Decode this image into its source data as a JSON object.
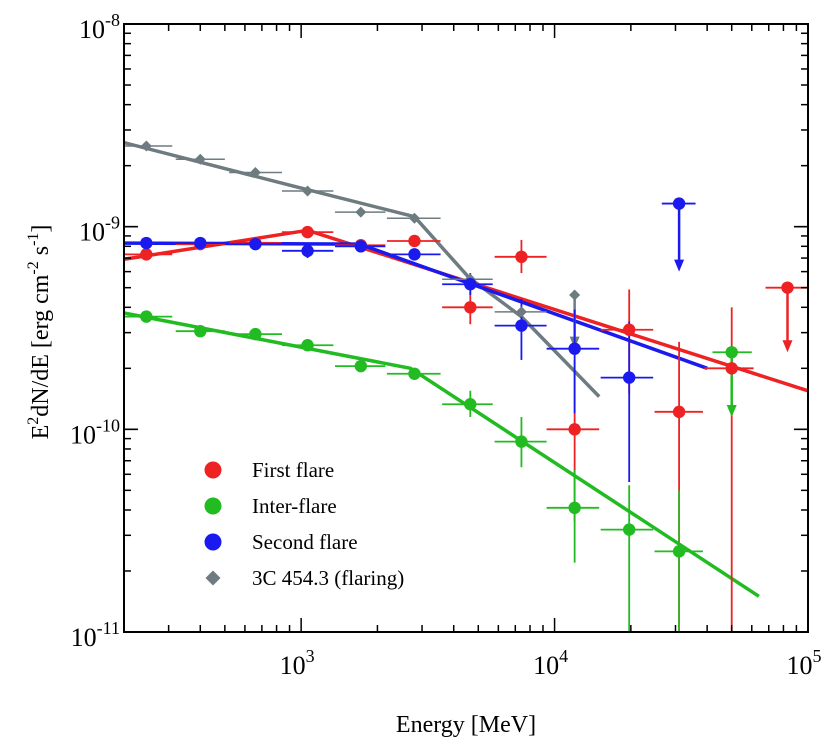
{
  "chart_data": {
    "type": "scatter",
    "xscale": "log",
    "yscale": "log",
    "xlim": [
      200,
      100000
    ],
    "ylim": [
      1e-11,
      1e-08
    ],
    "xlabel": "Energy [MeV]",
    "ylabel_parts": [
      "E",
      "2",
      "dN/dE [erg cm",
      "-2",
      " s",
      "-1",
      "]"
    ],
    "x_ticks": [
      {
        "value": 1000,
        "base": "10",
        "exp": "3"
      },
      {
        "value": 10000,
        "base": "10",
        "exp": "4"
      },
      {
        "value": 100000,
        "base": "10",
        "exp": "5"
      }
    ],
    "y_ticks": [
      {
        "value": 1e-11,
        "base": "10",
        "exp": "-11"
      },
      {
        "value": 1e-10,
        "base": "10",
        "exp": "-10"
      },
      {
        "value": 1e-09,
        "base": "10",
        "exp": "-9"
      },
      {
        "value": 1e-08,
        "base": "10",
        "exp": "-8"
      }
    ],
    "legend": [
      {
        "label": "First flare",
        "color": "#ee2222",
        "marker": "circle"
      },
      {
        "label": "Inter-flare",
        "color": "#22bb22",
        "marker": "circle"
      },
      {
        "label": "Second flare",
        "color": "#1a1aee",
        "marker": "circle"
      },
      {
        "label": "3C 454.3 (flaring)",
        "color": "#6e7b80",
        "marker": "diamond"
      }
    ],
    "series": [
      {
        "name": "3C 454.3 (flaring)",
        "color": "#6e7b80",
        "marker": "diamond",
        "points": [
          {
            "x": 245,
            "y": 2.5e-09,
            "xlo": 200,
            "xhi": 310
          },
          {
            "x": 400,
            "y": 2.15e-09,
            "xlo": 320,
            "xhi": 500
          },
          {
            "x": 660,
            "y": 1.85e-09,
            "xlo": 520,
            "xhi": 840
          },
          {
            "x": 1060,
            "y": 1.5e-09,
            "xlo": 840,
            "xhi": 1340
          },
          {
            "x": 1720,
            "y": 1.18e-09,
            "xlo": 1360,
            "xhi": 2150
          },
          {
            "x": 2800,
            "y": 1.1e-09,
            "xlo": 2180,
            "xhi": 3550
          },
          {
            "x": 4650,
            "y": 5.5e-10,
            "xlo": 3600,
            "xhi": 5700
          },
          {
            "x": 7400,
            "y": 3.8e-10,
            "xlo": 5800,
            "xhi": 9300
          },
          {
            "x": 12000,
            "y": 4.6e-10,
            "ylo": 2.5e-10,
            "ul": true
          }
        ],
        "model": [
          [
            200,
            2.6e-09
          ],
          [
            1000,
            1.55e-09
          ],
          [
            2800,
            1.12e-09
          ],
          [
            4600,
            5.6e-10
          ],
          [
            7400,
            3.6e-10
          ],
          [
            15000,
            1.45e-10
          ]
        ]
      },
      {
        "name": "First flare",
        "color": "#ee2222",
        "marker": "circle",
        "points": [
          {
            "x": 245,
            "y": 7.3e-10,
            "xlo": 200,
            "xhi": 310
          },
          {
            "x": 400,
            "y": 8.2e-10,
            "xlo": 320,
            "xhi": 500
          },
          {
            "x": 660,
            "y": 8.3e-10,
            "xlo": 520,
            "xhi": 840
          },
          {
            "x": 1060,
            "y": 9.4e-10,
            "xlo": 840,
            "xhi": 1340
          },
          {
            "x": 1720,
            "y": 8.1e-10,
            "xlo": 1360,
            "xhi": 2150
          },
          {
            "x": 2800,
            "y": 8.5e-10,
            "xlo": 2180,
            "xhi": 3550
          },
          {
            "x": 4650,
            "y": 4e-10,
            "xlo": 3600,
            "xhi": 5700,
            "ylo": 3.3e-10,
            "yhi": 4.8e-10
          },
          {
            "x": 7400,
            "y": 7.1e-10,
            "xlo": 5800,
            "xhi": 9300,
            "ylo": 5.9e-10,
            "yhi": 8.6e-10
          },
          {
            "x": 12000,
            "y": 1e-10,
            "xlo": 9300,
            "xhi": 15000,
            "ylo": 3.5e-11,
            "yhi": 2.2e-10
          },
          {
            "x": 19700,
            "y": 3.1e-10,
            "xlo": 15200,
            "xhi": 24500,
            "ylo": 1.5e-10,
            "yhi": 4.9e-10
          },
          {
            "x": 31000,
            "y": 1.22e-10,
            "xlo": 24800,
            "xhi": 38500,
            "ylo": 1e-11,
            "yhi": 2.7e-10
          },
          {
            "x": 50000,
            "y": 2e-10,
            "xlo": 39000,
            "xhi": 61000,
            "ylo": 1e-11,
            "yhi": 4e-10
          },
          {
            "x": 83000,
            "y": 5e-10,
            "xlo": 68000,
            "xhi": 100000,
            "ul": true,
            "ylo": 2.4e-10
          }
        ],
        "model": [
          [
            200,
            6.9e-10
          ],
          [
            1060,
            9.6e-10
          ],
          [
            100000,
            1.55e-10
          ]
        ]
      },
      {
        "name": "Second flare",
        "color": "#1a1aee",
        "marker": "circle",
        "points": [
          {
            "x": 245,
            "y": 8.3e-10,
            "xlo": 200,
            "xhi": 310
          },
          {
            "x": 400,
            "y": 8.3e-10,
            "xlo": 320,
            "xhi": 500
          },
          {
            "x": 660,
            "y": 8.2e-10,
            "xlo": 520,
            "xhi": 840
          },
          {
            "x": 1060,
            "y": 7.6e-10,
            "xlo": 840,
            "xhi": 1340,
            "ylo": 7e-10,
            "yhi": 8.3e-10
          },
          {
            "x": 1720,
            "y": 8e-10,
            "xlo": 1360,
            "xhi": 2150
          },
          {
            "x": 2800,
            "y": 7.3e-10,
            "xlo": 2180,
            "xhi": 3550
          },
          {
            "x": 4650,
            "y": 5.2e-10,
            "xlo": 3600,
            "xhi": 5700,
            "ylo": 4.6e-10,
            "yhi": 5.9e-10
          },
          {
            "x": 7400,
            "y": 3.25e-10,
            "xlo": 5800,
            "xhi": 9300,
            "ylo": 2.2e-10,
            "yhi": 4.4e-10
          },
          {
            "x": 12000,
            "y": 2.5e-10,
            "xlo": 9300,
            "xhi": 15000,
            "ylo": 1.2e-10,
            "yhi": 3.9e-10
          },
          {
            "x": 19700,
            "y": 1.8e-10,
            "xlo": 15200,
            "xhi": 24500,
            "ylo": 5.5e-11,
            "yhi": 3.4e-10
          },
          {
            "x": 31000,
            "y": 1.3e-09,
            "xlo": 26500,
            "xhi": 36000,
            "ul": true,
            "ylo": 6e-10
          }
        ],
        "model": [
          [
            200,
            8.3e-10
          ],
          [
            1700,
            8.2e-10
          ],
          [
            40000,
            2e-10
          ]
        ]
      },
      {
        "name": "Inter-flare",
        "color": "#22bb22",
        "marker": "circle",
        "points": [
          {
            "x": 245,
            "y": 3.6e-10,
            "xlo": 200,
            "xhi": 310
          },
          {
            "x": 400,
            "y": 3.05e-10,
            "xlo": 320,
            "xhi": 500
          },
          {
            "x": 660,
            "y": 2.95e-10,
            "xlo": 520,
            "xhi": 840
          },
          {
            "x": 1060,
            "y": 2.6e-10,
            "xlo": 840,
            "xhi": 1340
          },
          {
            "x": 1720,
            "y": 2.05e-10,
            "xlo": 1360,
            "xhi": 2150
          },
          {
            "x": 2800,
            "y": 1.88e-10,
            "xlo": 2180,
            "xhi": 3550
          },
          {
            "x": 4650,
            "y": 1.33e-10,
            "xlo": 3600,
            "xhi": 5700,
            "ylo": 1.15e-10,
            "yhi": 1.55e-10
          },
          {
            "x": 7400,
            "y": 8.7e-11,
            "xlo": 5800,
            "xhi": 9300,
            "ylo": 6.5e-11,
            "yhi": 1.15e-10
          },
          {
            "x": 12000,
            "y": 4.1e-11,
            "xlo": 9300,
            "xhi": 15000,
            "ylo": 2.2e-11,
            "yhi": 6.3e-11
          },
          {
            "x": 19700,
            "y": 3.2e-11,
            "xlo": 15200,
            "xhi": 24500,
            "ylo": 1e-11,
            "yhi": 5.3e-11
          },
          {
            "x": 31000,
            "y": 2.5e-11,
            "xlo": 24800,
            "xhi": 38500,
            "ylo": 1e-11,
            "yhi": 5e-11
          },
          {
            "x": 50000,
            "y": 2.4e-10,
            "xlo": 42000,
            "xhi": 60000,
            "ul": true,
            "ylo": 1.15e-10
          }
        ],
        "model": [
          [
            200,
            3.75e-10
          ],
          [
            2700,
            2e-10
          ],
          [
            64000,
            1.5e-11
          ]
        ]
      }
    ]
  }
}
